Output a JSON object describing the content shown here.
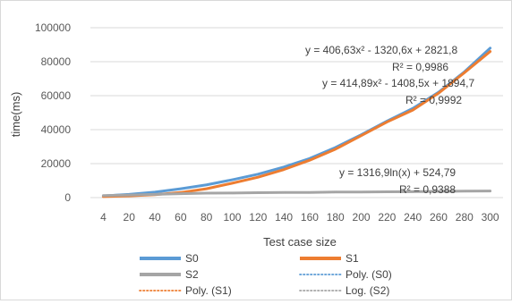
{
  "chart_data": {
    "type": "line",
    "xlabel": "Test case size",
    "ylabel": "time(ms)",
    "ylim": [
      0,
      100000
    ],
    "yticks": [
      "0",
      "20000",
      "40000",
      "60000",
      "80000",
      "100000"
    ],
    "categories": [
      "4",
      "20",
      "40",
      "60",
      "80",
      "100",
      "120",
      "140",
      "160",
      "180",
      "200",
      "220",
      "240",
      "260",
      "280",
      "300"
    ],
    "grid": "horizontal",
    "legend_position": "bottom",
    "series": [
      {
        "name": "S0",
        "color": "#5b9bd5",
        "style": "solid",
        "values": [
          1000,
          1900,
          3200,
          5200,
          7500,
          10500,
          13800,
          18000,
          23000,
          29500,
          37000,
          45000,
          52500,
          62000,
          74000,
          88000
        ]
      },
      {
        "name": "S1",
        "color": "#ed7d31",
        "style": "solid",
        "values": [
          600,
          1000,
          1700,
          3000,
          5200,
          8500,
          12000,
          16500,
          22000,
          28500,
          36500,
          44500,
          51500,
          61500,
          73500,
          86000
        ]
      },
      {
        "name": "S2",
        "color": "#a5a5a5",
        "style": "solid",
        "values": [
          1200,
          1500,
          1900,
          2300,
          2600,
          2700,
          2900,
          3000,
          3000,
          3300,
          3300,
          3400,
          3500,
          3700,
          3800,
          3900
        ]
      }
    ],
    "trendlines": [
      {
        "name": "Poly. (S0)",
        "color": "#5b9bd5",
        "style": "dotted"
      },
      {
        "name": "Poly. (S1)",
        "color": "#ed7d31",
        "style": "dotted"
      },
      {
        "name": "Log. (S2)",
        "color": "#a5a5a5",
        "style": "dotted"
      }
    ],
    "annotations": [
      {
        "eq": "y = 406,63x² - 1320,6x + 2821,8",
        "r2": "R² = 0,9986"
      },
      {
        "eq": "y = 414,89x² - 1408,5x + 1894,7",
        "r2": "R² = 0,9992"
      },
      {
        "eq": "y = 1316,9ln(x) + 524,79",
        "r2": "R² = 0,9388"
      }
    ]
  }
}
